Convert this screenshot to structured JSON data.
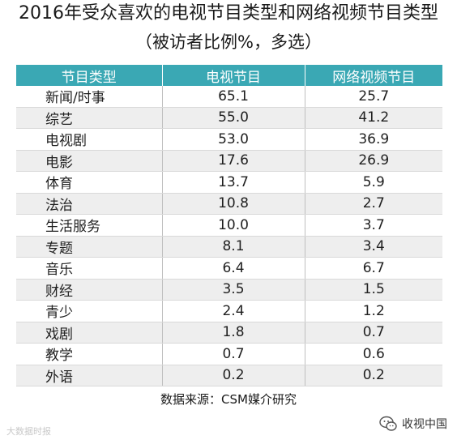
{
  "chart_data": {
    "type": "table",
    "title": "2016年受众喜欢的电视节目类型和网络视频节目类型",
    "subtitle": "（被访者比例%，多选）",
    "columns": [
      "节目类型",
      "电视节目",
      "网络视频节目"
    ],
    "rows": [
      {
        "category": "新闻/时事",
        "tv": "65.1",
        "online": "25.7"
      },
      {
        "category": "综艺",
        "tv": "55.0",
        "online": "41.2"
      },
      {
        "category": "电视剧",
        "tv": "53.0",
        "online": "36.9"
      },
      {
        "category": "电影",
        "tv": "17.6",
        "online": "26.9"
      },
      {
        "category": "体育",
        "tv": "13.7",
        "online": "5.9"
      },
      {
        "category": "法治",
        "tv": "10.8",
        "online": "2.7"
      },
      {
        "category": "生活服务",
        "tv": "10.0",
        "online": "3.7"
      },
      {
        "category": "专题",
        "tv": "8.1",
        "online": "3.4"
      },
      {
        "category": "音乐",
        "tv": "6.4",
        "online": "6.7"
      },
      {
        "category": "财经",
        "tv": "3.5",
        "online": "1.5"
      },
      {
        "category": "青少",
        "tv": "2.4",
        "online": "1.2"
      },
      {
        "category": "戏剧",
        "tv": "1.8",
        "online": "0.7"
      },
      {
        "category": "教学",
        "tv": "0.7",
        "online": "0.6"
      },
      {
        "category": "外语",
        "tv": "0.2",
        "online": "0.2"
      }
    ],
    "source": "数据来源：CSM媒介研究",
    "header_color": "#3aa8b4",
    "alt_row_color": "#eeeeee"
  },
  "watermark": {
    "left": "大数据时报",
    "right": "收视中国",
    "icon": "wechat-icon"
  }
}
